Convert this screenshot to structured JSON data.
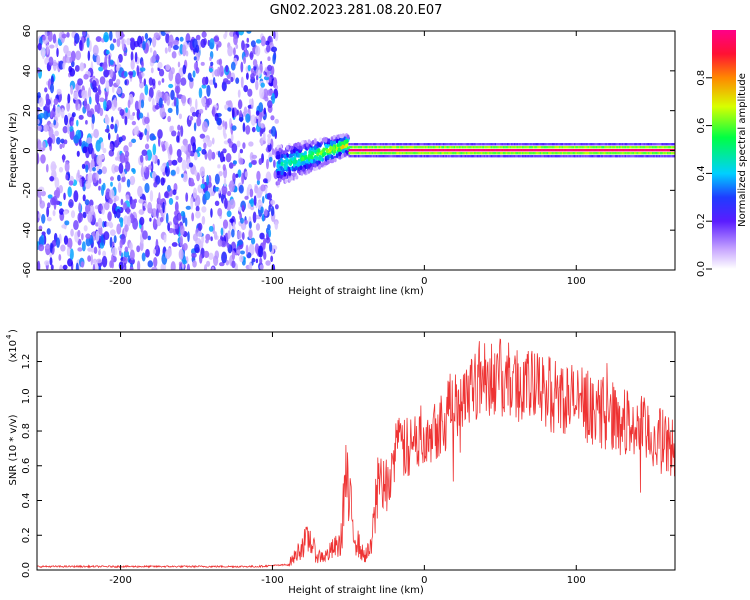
{
  "title": "GN02.2023.281.08.20.E07",
  "chart_data": [
    {
      "type": "heatmap",
      "xlabel": "Height of straight line (km)",
      "ylabel": "Frequency (Hz)",
      "xlim": [
        -255,
        165
      ],
      "ylim": [
        -60,
        60
      ],
      "xticks": [
        -200,
        -100,
        0,
        100
      ],
      "yticks": [
        60,
        40,
        20,
        0,
        -20,
        -40,
        -60
      ],
      "grid": false,
      "colorbar": {
        "label": "Normalized spectral amplitude",
        "range": [
          0,
          1
        ],
        "ticks": [
          "0.0",
          "0.2",
          "0.4",
          "0.6",
          "0.8"
        ],
        "colormap": [
          "#ffffff",
          "#9966ff",
          "#2200ff",
          "#00d5ff",
          "#00ff55",
          "#dfff00",
          "#ff8800",
          "#ff1133",
          "#ff0088"
        ]
      },
      "regions": [
        {
          "x": [
            -255,
            -97
          ],
          "freq": [
            -60,
            60
          ],
          "amplitude": "low-mid noise (0.05-0.35)"
        },
        {
          "x": [
            -97,
            -50
          ],
          "freq": [
            -15,
            12
          ],
          "amplitude": "0.3-0.6, frequency rising from about -8 to 3 Hz"
        },
        {
          "x": [
            -50,
            165
          ],
          "freq": [
            -3,
            3
          ],
          "amplitude": "0.7-1.0 narrow line near 0 Hz"
        }
      ]
    },
    {
      "type": "line",
      "xlabel": "Height of straight line (km)",
      "ylabel": "SNR (10 * v/v)",
      "yscale_label": "(x10",
      "yscale_exp": "4",
      "xlim": [
        -255,
        165
      ],
      "ylim": [
        0,
        1.37
      ],
      "xticks": [
        -200,
        -100,
        0,
        100
      ],
      "yticks": [
        "0.0",
        "0.2",
        "0.4",
        "0.6",
        "0.8",
        "1.0",
        "1.2"
      ],
      "grid": false,
      "series": [
        {
          "color": "#ee3333",
          "x": [
            -255,
            -200,
            -150,
            -110,
            -90,
            -85,
            -80,
            -75,
            -72,
            -70,
            -65,
            -60,
            -55,
            -52,
            -50,
            -45,
            -40,
            -35,
            -30,
            -28,
            -25,
            -20,
            -15,
            -10,
            -5,
            0,
            5,
            10,
            15,
            20,
            25,
            30,
            35,
            40,
            45,
            50,
            55,
            60,
            70,
            80,
            90,
            100,
            110,
            120,
            130,
            140,
            150,
            160,
            165
          ],
          "y": [
            0.02,
            0.02,
            0.02,
            0.02,
            0.03,
            0.08,
            0.15,
            0.18,
            0.1,
            0.08,
            0.08,
            0.12,
            0.15,
            0.55,
            0.4,
            0.18,
            0.08,
            0.12,
            0.55,
            0.45,
            0.5,
            0.65,
            0.72,
            0.68,
            0.75,
            0.8,
            0.82,
            0.85,
            0.9,
            0.95,
            1.02,
            1.07,
            1.1,
            1.12,
            1.12,
            1.1,
            1.09,
            1.08,
            1.05,
            1.02,
            1.0,
            0.97,
            0.93,
            0.9,
            0.86,
            0.82,
            0.77,
            0.72,
            0.7
          ]
        }
      ]
    }
  ]
}
